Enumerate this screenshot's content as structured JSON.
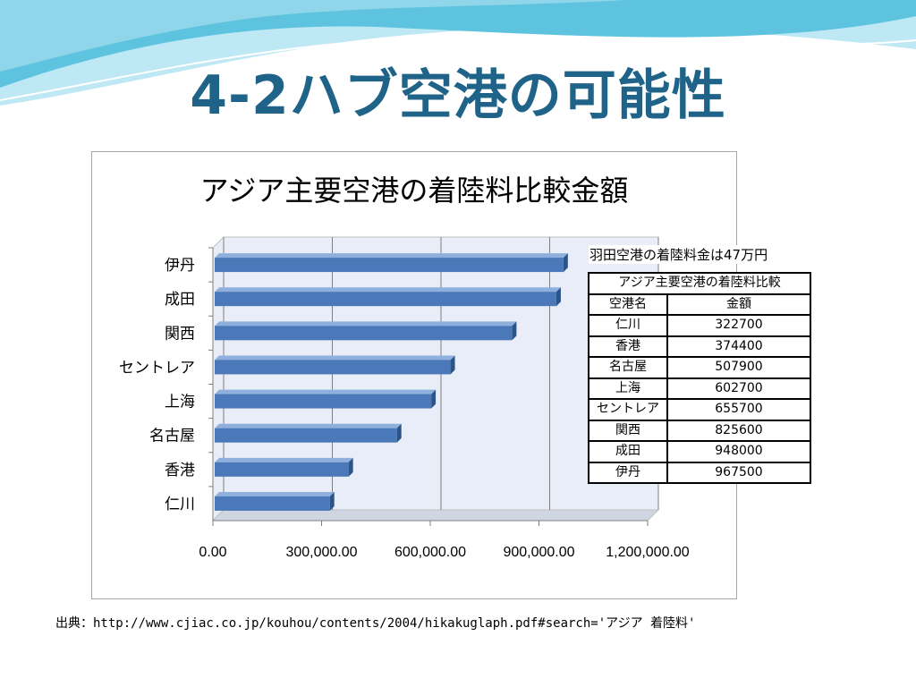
{
  "slide": {
    "title": "4-2ハブ空港の可能性",
    "source": "出典：http://www.cjiac.co.jp/kouhou/contents/2004/hikakuglaph.pdf#search='アジア 着陸料'"
  },
  "colors": {
    "title": "#1f6488",
    "bar": "#4a78b9",
    "bar_top": "#8fb0dd",
    "bar_side": "#2d5488",
    "plot_bg": "#e8edf7",
    "wave_dark": "#3fb6d6",
    "wave_light": "#a9dff0"
  },
  "chart_data": {
    "type": "bar",
    "orientation": "horizontal",
    "title": "アジア主要空港の着陸料比較金額",
    "categories": [
      "伊丹",
      "成田",
      "関西",
      "セントレア",
      "上海",
      "名古屋",
      "香港",
      "仁川"
    ],
    "values": [
      967500,
      948000,
      825600,
      655700,
      602700,
      507900,
      374400,
      322700
    ],
    "xlim": [
      0,
      1200000
    ],
    "xticks": [
      "0.00",
      "300,000.00",
      "600,000.00",
      "900,000.00",
      "1,200,000.00"
    ],
    "grid": true,
    "legend": "none"
  },
  "table": {
    "note": "羽田空港の着陸料金は47万円",
    "title": "アジア主要空港の着陸料比較",
    "header": [
      "空港名",
      "金額"
    ],
    "rows": [
      [
        "仁川",
        "322700"
      ],
      [
        "香港",
        "374400"
      ],
      [
        "名古屋",
        "507900"
      ],
      [
        "上海",
        "602700"
      ],
      [
        "セントレア",
        "655700"
      ],
      [
        "関西",
        "825600"
      ],
      [
        "成田",
        "948000"
      ],
      [
        "伊丹",
        "967500"
      ]
    ]
  }
}
